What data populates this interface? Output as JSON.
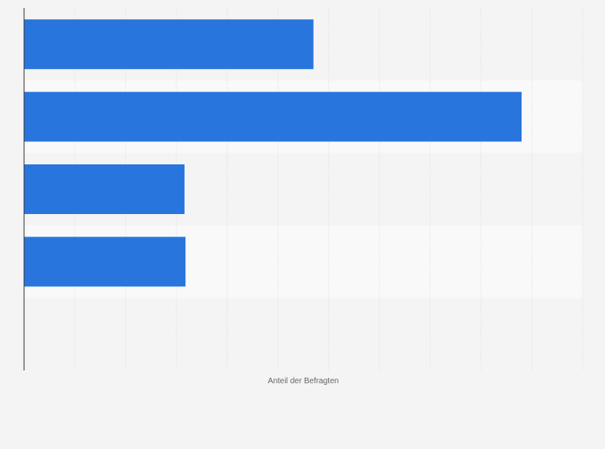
{
  "chart_data": {
    "type": "bar",
    "orientation": "horizontal",
    "categories": [
      "",
      "",
      "",
      "",
      ""
    ],
    "values": [
      28.5,
      49,
      15.8,
      15.9,
      0
    ],
    "xlim": [
      0,
      55
    ],
    "xlabel": "Anteil der Befragten",
    "ylabel": "",
    "title": "",
    "grid": true,
    "legend": "none"
  },
  "colors": {
    "bar": "#2876dd",
    "band_alt": "#f9f9f9",
    "background": "#f4f4f4",
    "grid": "#dadada",
    "axis": "#333333"
  }
}
